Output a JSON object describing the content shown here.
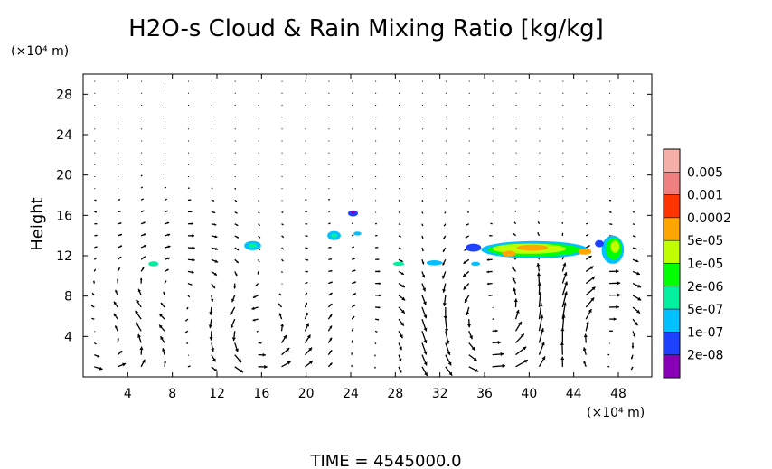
{
  "chart_data": {
    "type": "heatmap",
    "title": "H2O-s Cloud & Rain Mixing Ratio [kg/kg]",
    "ylabel": "Height",
    "yunit": "(×10⁴ m)",
    "xunit": "(×10⁴ m)",
    "footer": "TIME  =  4545000.0",
    "xlim": [
      0,
      51
    ],
    "ylim": [
      0,
      30
    ],
    "xticks": [
      4,
      8,
      12,
      16,
      20,
      24,
      28,
      32,
      36,
      40,
      44,
      48
    ],
    "yticks": [
      4,
      8,
      12,
      16,
      20,
      24,
      28
    ],
    "grid": false,
    "legend": "right",
    "colorbar": [
      {
        "label": "0.005",
        "color": "#f08080"
      },
      {
        "label": "0.001",
        "color": "#ff3300"
      },
      {
        "label": "0.0002",
        "color": "#ffa500"
      },
      {
        "label": "5e-05",
        "color": "#bfff00"
      },
      {
        "label": "1e-05",
        "color": "#00ff00"
      },
      {
        "label": "2e-06",
        "color": "#00f0a0"
      },
      {
        "label": "5e-07",
        "color": "#00c0ff"
      },
      {
        "label": "1e-07",
        "color": "#1e40ff"
      },
      {
        "label": "2e-08",
        "color": "#8a00b8"
      }
    ],
    "colorbar_top_color": "#f4b0a8",
    "cloud_patches": [
      {
        "x": 6.3,
        "y": 11.2,
        "rx": 0.45,
        "ry": 0.25,
        "color": "#00f0a0"
      },
      {
        "x": 15.2,
        "y": 13.0,
        "rx": 0.75,
        "ry": 0.45,
        "color": "#00c0ff"
      },
      {
        "x": 15.2,
        "y": 13.0,
        "rx": 0.4,
        "ry": 0.22,
        "color": "#00f0a0"
      },
      {
        "x": 22.5,
        "y": 14.0,
        "rx": 0.6,
        "ry": 0.45,
        "color": "#00c0ff"
      },
      {
        "x": 22.5,
        "y": 14.0,
        "rx": 0.3,
        "ry": 0.2,
        "color": "#00f0a0"
      },
      {
        "x": 24.2,
        "y": 16.2,
        "rx": 0.45,
        "ry": 0.3,
        "color": "#1e40ff"
      },
      {
        "x": 24.2,
        "y": 16.3,
        "rx": 0.2,
        "ry": 0.15,
        "color": "#8a00b8"
      },
      {
        "x": 24.6,
        "y": 14.2,
        "rx": 0.35,
        "ry": 0.2,
        "color": "#00c0ff"
      },
      {
        "x": 28.3,
        "y": 11.2,
        "rx": 0.5,
        "ry": 0.2,
        "color": "#00f0a0"
      },
      {
        "x": 31.5,
        "y": 11.3,
        "rx": 0.7,
        "ry": 0.25,
        "color": "#00c0ff"
      },
      {
        "x": 35.2,
        "y": 11.2,
        "rx": 0.4,
        "ry": 0.2,
        "color": "#00c0ff"
      },
      {
        "x": 35.0,
        "y": 12.8,
        "rx": 0.7,
        "ry": 0.4,
        "color": "#1e40ff"
      },
      {
        "x": 40.5,
        "y": 12.6,
        "rx": 4.8,
        "ry": 0.85,
        "color": "#00c0ff"
      },
      {
        "x": 40.5,
        "y": 12.6,
        "rx": 4.2,
        "ry": 0.65,
        "color": "#00ff00"
      },
      {
        "x": 40.0,
        "y": 12.7,
        "rx": 3.3,
        "ry": 0.5,
        "color": "#bfff00"
      },
      {
        "x": 40.3,
        "y": 12.8,
        "rx": 1.4,
        "ry": 0.3,
        "color": "#ffa500"
      },
      {
        "x": 38.2,
        "y": 12.2,
        "rx": 0.6,
        "ry": 0.3,
        "color": "#ffa500"
      },
      {
        "x": 45.0,
        "y": 12.4,
        "rx": 0.6,
        "ry": 0.3,
        "color": "#ffa500"
      },
      {
        "x": 47.5,
        "y": 12.6,
        "rx": 1.0,
        "ry": 1.4,
        "color": "#00c0ff"
      },
      {
        "x": 47.6,
        "y": 12.7,
        "rx": 0.7,
        "ry": 1.1,
        "color": "#00ff00"
      },
      {
        "x": 47.7,
        "y": 12.9,
        "rx": 0.4,
        "ry": 0.6,
        "color": "#bfff00"
      },
      {
        "x": 46.3,
        "y": 13.2,
        "rx": 0.4,
        "ry": 0.35,
        "color": "#1e40ff"
      }
    ],
    "vortices": [
      {
        "x": 3.0,
        "y": 3.0,
        "r": 4.0,
        "dir": 1,
        "s": 1.0
      },
      {
        "x": 8.0,
        "y": 7.5,
        "r": 4.5,
        "dir": -1,
        "s": 0.8
      },
      {
        "x": 15.5,
        "y": 4.0,
        "r": 3.0,
        "dir": 1,
        "s": 1.1
      },
      {
        "x": 28.0,
        "y": 5.0,
        "r": 4.0,
        "dir": -1,
        "s": 0.7
      },
      {
        "x": 36.5,
        "y": 5.0,
        "r": 5.0,
        "dir": 1,
        "s": 1.3
      },
      {
        "x": 46.0,
        "y": 5.0,
        "r": 3.8,
        "dir": -1,
        "s": 1.2
      }
    ]
  }
}
